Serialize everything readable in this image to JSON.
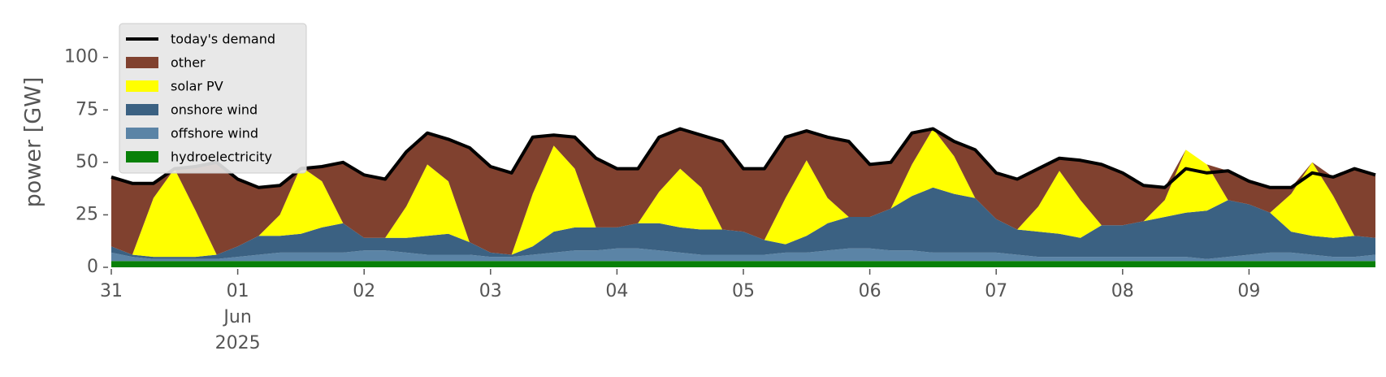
{
  "chart_data": {
    "type": "stacked_area",
    "ylabel": "power [GW]",
    "x": [
      0,
      4,
      8,
      12,
      16,
      20,
      24,
      28,
      32,
      36,
      40,
      44,
      48,
      52,
      56,
      60,
      64,
      68,
      72,
      76,
      80,
      84,
      88,
      92,
      96,
      100,
      104,
      108,
      112,
      116,
      120,
      124,
      128,
      132,
      136,
      140,
      144,
      148,
      152,
      156,
      160,
      164,
      168,
      172,
      176,
      180,
      184,
      188,
      192,
      196,
      200,
      204,
      208,
      212,
      216,
      220,
      224,
      228,
      232,
      236,
      240
    ],
    "xlim": [
      0,
      240
    ],
    "xticks": [
      {
        "value": 0,
        "label": "31"
      },
      {
        "value": 24,
        "label": "01"
      },
      {
        "value": 48,
        "label": "02"
      },
      {
        "value": 72,
        "label": "03"
      },
      {
        "value": 96,
        "label": "04"
      },
      {
        "value": 120,
        "label": "05"
      },
      {
        "value": 144,
        "label": "06"
      },
      {
        "value": 168,
        "label": "07"
      },
      {
        "value": 192,
        "label": "08"
      },
      {
        "value": 216,
        "label": "09"
      }
    ],
    "xtick_sublabel": [
      "Jun",
      "2025"
    ],
    "ylim": [
      0,
      120
    ],
    "yticks": [
      0,
      25,
      50,
      75,
      100
    ],
    "legend": "upper left",
    "series": [
      {
        "name": "today's demand",
        "type": "line",
        "color": "#000000",
        "values": [
          43,
          40,
          40,
          47,
          48,
          50,
          42,
          38,
          39,
          47,
          48,
          50,
          44,
          42,
          55,
          64,
          61,
          57,
          48,
          45,
          62,
          63,
          62,
          52,
          47,
          47,
          62,
          66,
          63,
          60,
          47,
          47,
          62,
          65,
          62,
          60,
          49,
          50,
          64,
          66,
          60,
          56,
          45,
          42,
          47,
          52,
          51,
          49,
          45,
          39,
          38,
          47,
          45,
          46,
          41,
          38,
          38,
          45,
          43,
          47,
          44
        ]
      },
      {
        "name": "other",
        "type": "area",
        "color": "#80412f",
        "values": [
          33,
          34,
          7,
          0,
          21,
          44,
          32,
          23,
          14,
          0,
          7,
          29,
          30,
          28,
          26,
          15,
          20,
          45,
          41,
          39,
          27,
          5,
          15,
          33,
          28,
          26,
          26,
          19,
          25,
          42,
          30,
          34,
          29,
          14,
          29,
          36,
          25,
          22,
          15,
          0,
          7,
          23,
          22,
          24,
          18,
          6,
          19,
          29,
          25,
          17,
          6,
          0,
          0,
          14,
          11,
          12,
          3,
          0,
          9,
          32,
          30
        ]
      },
      {
        "name": "solar PV",
        "type": "area",
        "color": "#ffff00",
        "values": [
          0,
          0,
          28,
          42,
          22,
          0,
          0,
          0,
          10,
          32,
          22,
          0,
          0,
          0,
          15,
          34,
          25,
          0,
          0,
          0,
          25,
          41,
          28,
          0,
          0,
          0,
          15,
          28,
          20,
          0,
          0,
          0,
          22,
          36,
          12,
          0,
          0,
          0,
          15,
          28,
          18,
          0,
          0,
          0,
          12,
          30,
          18,
          0,
          0,
          0,
          8,
          30,
          22,
          0,
          0,
          0,
          18,
          35,
          20,
          0,
          0
        ]
      },
      {
        "name": "onshore wind",
        "type": "area",
        "color": "#3b6182",
        "values": [
          3,
          1,
          1,
          1,
          1,
          2,
          5,
          9,
          8,
          9,
          12,
          14,
          6,
          6,
          7,
          9,
          10,
          6,
          2,
          1,
          4,
          10,
          11,
          11,
          10,
          12,
          13,
          12,
          12,
          12,
          11,
          7,
          4,
          8,
          13,
          15,
          15,
          20,
          26,
          31,
          28,
          26,
          16,
          12,
          12,
          11,
          9,
          15,
          15,
          17,
          19,
          21,
          23,
          27,
          24,
          19,
          10,
          9,
          9,
          10,
          8
        ]
      },
      {
        "name": "offshore wind",
        "type": "area",
        "color": "#5b84a6",
        "values": [
          4,
          2,
          1,
          1,
          1,
          1,
          2,
          3,
          4,
          4,
          4,
          4,
          5,
          5,
          4,
          3,
          3,
          3,
          2,
          2,
          3,
          4,
          5,
          5,
          6,
          6,
          5,
          4,
          3,
          3,
          3,
          3,
          4,
          4,
          5,
          6,
          6,
          5,
          5,
          4,
          4,
          4,
          4,
          3,
          2,
          2,
          2,
          2,
          2,
          2,
          2,
          2,
          1,
          2,
          3,
          4,
          4,
          3,
          2,
          2,
          3
        ]
      },
      {
        "name": "hydroelectricity",
        "type": "area",
        "color": "#088008",
        "values": [
          3,
          3,
          3,
          3,
          3,
          3,
          3,
          3,
          3,
          3,
          3,
          3,
          3,
          3,
          3,
          3,
          3,
          3,
          3,
          3,
          3,
          3,
          3,
          3,
          3,
          3,
          3,
          3,
          3,
          3,
          3,
          3,
          3,
          3,
          3,
          3,
          3,
          3,
          3,
          3,
          3,
          3,
          3,
          3,
          3,
          3,
          3,
          3,
          3,
          3,
          3,
          3,
          3,
          3,
          3,
          3,
          3,
          3,
          3,
          3,
          3
        ]
      }
    ]
  }
}
